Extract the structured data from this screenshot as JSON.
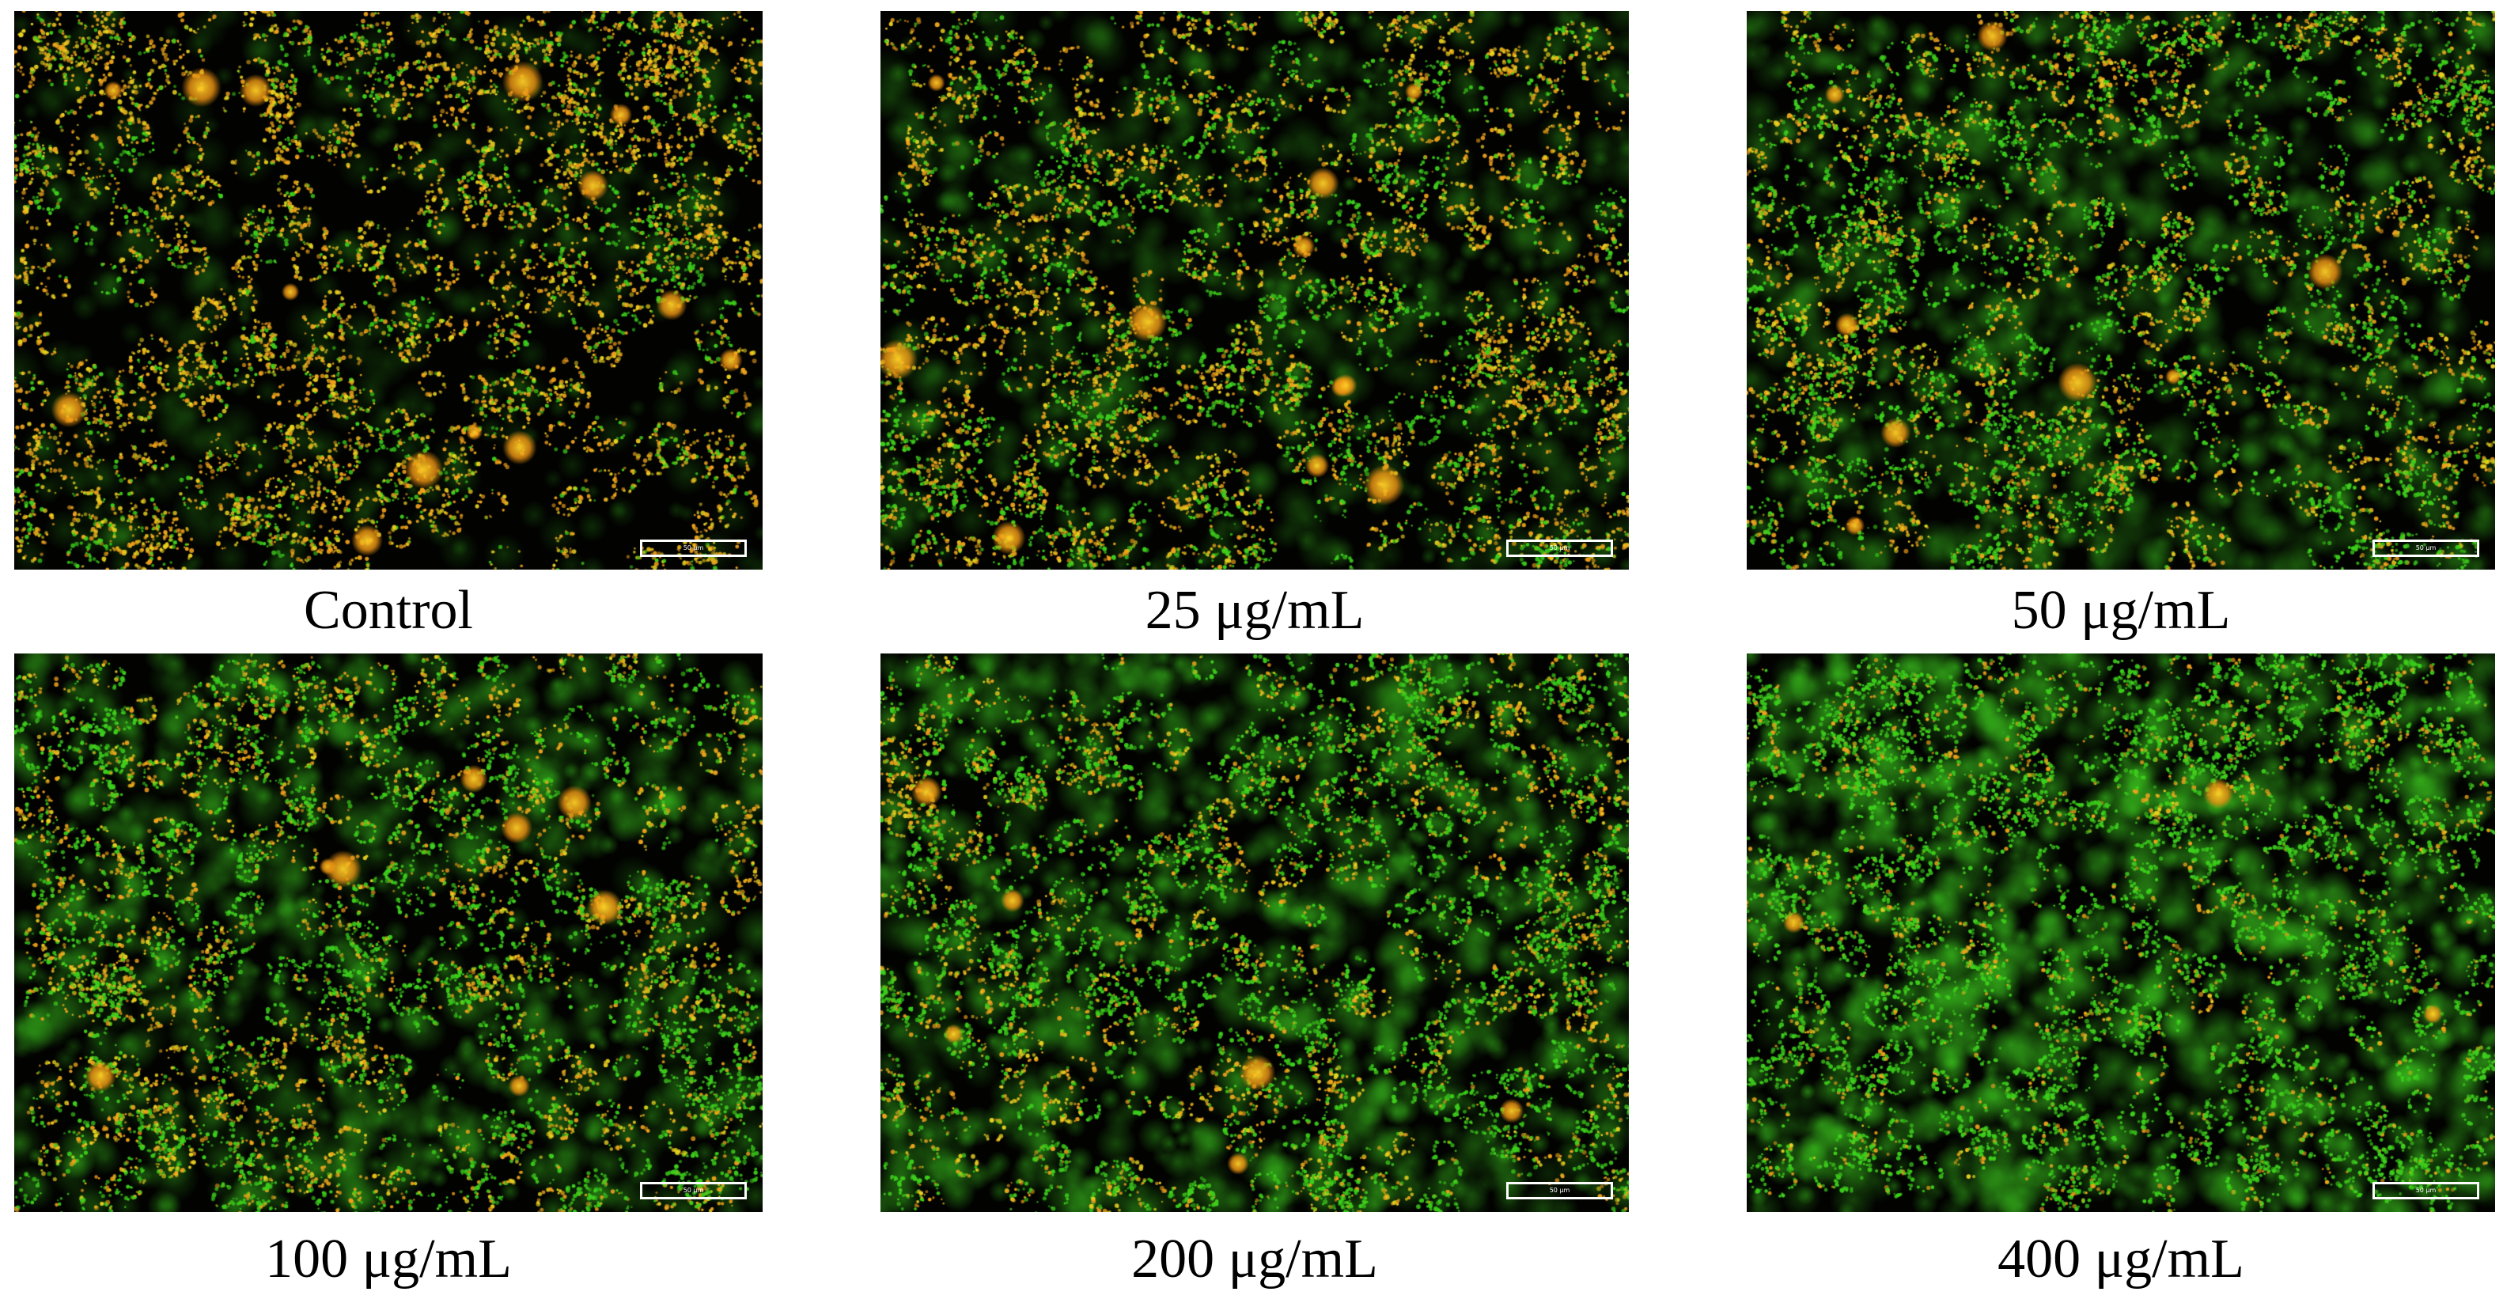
{
  "figure": {
    "panels": [
      {
        "id": "control",
        "caption": "Control",
        "scale_bar": "50 µm",
        "green_fraction": 0.15
      },
      {
        "id": "c25",
        "caption": "25 μg/mL",
        "scale_bar": "50 µm",
        "green_fraction": 0.35
      },
      {
        "id": "c50",
        "caption": "50 μg/mL",
        "scale_bar": "50 µm",
        "green_fraction": 0.55
      },
      {
        "id": "c100",
        "caption": "100 μg/mL",
        "scale_bar": "50 µm",
        "green_fraction": 0.6
      },
      {
        "id": "c200",
        "caption": "200 μg/mL",
        "scale_bar": "50 µm",
        "green_fraction": 0.72
      },
      {
        "id": "c400",
        "caption": "400 μg/mL",
        "scale_bar": "50 µm",
        "green_fraction": 0.93
      }
    ]
  },
  "colors": {
    "background": "#020201",
    "green_stain": "#3dcf1c",
    "orange_stain": "#f0a21c",
    "yellow_stain": "#e8d020",
    "caption_text": "#000000",
    "scale_bar": "#ffffff"
  }
}
